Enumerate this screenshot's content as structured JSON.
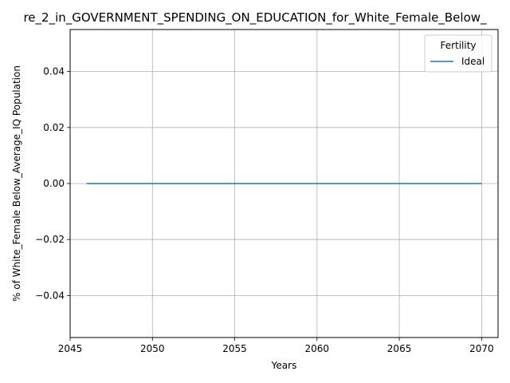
{
  "chart_data": {
    "type": "line",
    "title": "re_2_in_GOVERNMENT_SPENDING_ON_EDUCATION_for_White_Female_Below_",
    "xlabel": "Years",
    "ylabel": "% of White_Female Below_Average_IQ Population",
    "xlim": [
      2045,
      2071
    ],
    "ylim": [
      -0.055,
      0.055
    ],
    "x_ticks": [
      2045,
      2050,
      2055,
      2060,
      2065,
      2070
    ],
    "y_ticks": [
      -0.04,
      -0.02,
      0.0,
      0.02,
      0.04
    ],
    "x_tick_labels": [
      "2045",
      "2050",
      "2055",
      "2060",
      "2065",
      "2070"
    ],
    "y_tick_labels": [
      "−0.04",
      "−0.02",
      "0.00",
      "0.02",
      "0.04"
    ],
    "grid": true,
    "legend": {
      "title": "Fertility",
      "placement": "top-right"
    },
    "series": [
      {
        "name": "Ideal",
        "color": "#1f77b4",
        "x": [
          2046,
          2047,
          2048,
          2049,
          2050,
          2051,
          2052,
          2053,
          2054,
          2055,
          2056,
          2057,
          2058,
          2059,
          2060,
          2061,
          2062,
          2063,
          2064,
          2065,
          2066,
          2067,
          2068,
          2069,
          2070
        ],
        "y": [
          0,
          0,
          0,
          0,
          0,
          0,
          0,
          0,
          0,
          0,
          0,
          0,
          0,
          0,
          0,
          0,
          0,
          0,
          0,
          0,
          0,
          0,
          0,
          0,
          0
        ]
      }
    ]
  }
}
